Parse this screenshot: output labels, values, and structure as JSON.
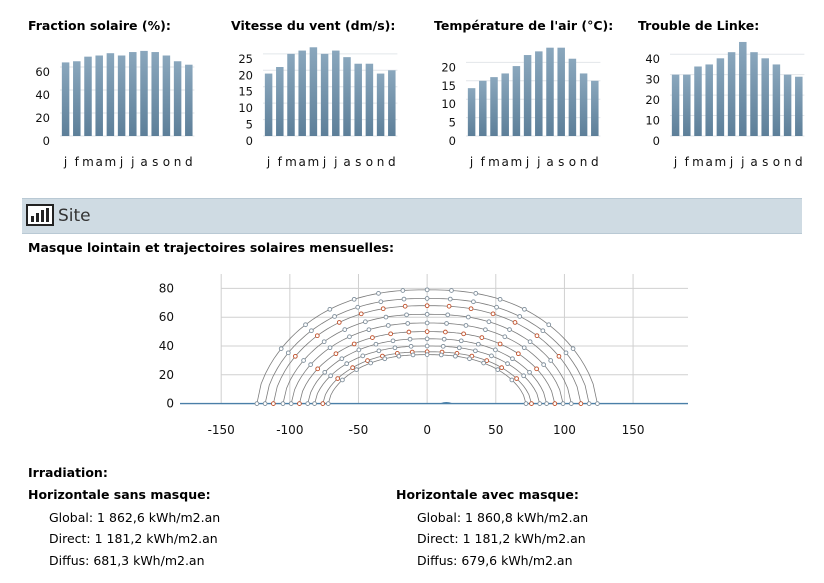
{
  "mini_charts": [
    {
      "title": "Fraction solaire (%):",
      "months": [
        "j",
        "f",
        "m",
        "a",
        "m",
        "j",
        "j",
        "a",
        "s",
        "o",
        "n",
        "d"
      ],
      "values": [
        64,
        65,
        69,
        70,
        72,
        70,
        73,
        74,
        73,
        70,
        65,
        62
      ],
      "ylim": [
        0,
        80
      ],
      "ticks": [
        0,
        20,
        40,
        60
      ]
    },
    {
      "title": "Vitesse du vent (dm/s):",
      "months": [
        "j",
        "f",
        "m",
        "a",
        "m",
        "j",
        "j",
        "a",
        "s",
        "o",
        "n",
        "d"
      ],
      "values": [
        19,
        21,
        25,
        26,
        27,
        25,
        26,
        24,
        22,
        22,
        19,
        20
      ],
      "ylim": [
        0,
        28
      ],
      "ticks": [
        0,
        5,
        10,
        15,
        20,
        25
      ]
    },
    {
      "title": "Température de l'air (°C):",
      "months": [
        "j",
        "f",
        "m",
        "a",
        "m",
        "j",
        "j",
        "a",
        "s",
        "o",
        "n",
        "d"
      ],
      "values": [
        13,
        15,
        16,
        17,
        19,
        22,
        23,
        24,
        24,
        21,
        17,
        15
      ],
      "ylim": [
        0,
        25
      ],
      "ticks": [
        0,
        5,
        10,
        15,
        20
      ]
    },
    {
      "title": "Trouble de Linke:",
      "months": [
        "j",
        "f",
        "m",
        "a",
        "m",
        "j",
        "j",
        "a",
        "s",
        "o",
        "n",
        "d"
      ],
      "values": [
        30,
        30,
        34,
        35,
        38,
        41,
        46,
        41,
        38,
        35,
        30,
        29
      ],
      "ylim": [
        0,
        45
      ],
      "ticks": [
        0,
        10,
        20,
        30,
        40
      ]
    }
  ],
  "section": {
    "title": "Site",
    "icon": "bar-chart-icon"
  },
  "subtitle": "Masque lointain et trajectoires solaires mensuelles:",
  "chart_data": {
    "type": "line",
    "xlim": [
      -180,
      190
    ],
    "ylim": [
      -10,
      90
    ],
    "x_ticks": [
      -150,
      -100,
      -50,
      0,
      50,
      100,
      150
    ],
    "y_ticks": [
      0,
      20,
      40,
      60,
      80
    ],
    "grid": true,
    "series": [
      {
        "noon_altitude": 79,
        "half_day_azimuth": 124,
        "marker": "#7f8f9c"
      },
      {
        "noon_altitude": 73,
        "half_day_azimuth": 118,
        "marker": "#7f8f9c"
      },
      {
        "noon_altitude": 68,
        "half_day_azimuth": 112,
        "marker": "#c0502a"
      },
      {
        "noon_altitude": 62,
        "half_day_azimuth": 105,
        "marker": "#7f8f9c"
      },
      {
        "noon_altitude": 56,
        "half_day_azimuth": 99,
        "marker": "#7f8f9c"
      },
      {
        "noon_altitude": 50,
        "half_day_azimuth": 93,
        "marker": "#c0502a"
      },
      {
        "noon_altitude": 45,
        "half_day_azimuth": 87,
        "marker": "#7f8f9c"
      },
      {
        "noon_altitude": 40,
        "half_day_azimuth": 82,
        "marker": "#7f8f9c"
      },
      {
        "noon_altitude": 36,
        "half_day_azimuth": 76,
        "marker": "#c0502a"
      },
      {
        "noon_altitude": 34,
        "half_day_azimuth": 72,
        "marker": "#7f8f9c"
      }
    ]
  },
  "irradiation": {
    "title": "Irradiation:",
    "left": {
      "heading": "Horizontale sans masque:",
      "lines": [
        "Global: 1 862,6 kWh/m2.an",
        "Direct: 1 181,2 kWh/m2.an",
        "Diffus: 681,3 kWh/m2.an"
      ]
    },
    "right": {
      "heading": "Horizontale avec masque:",
      "lines": [
        "Global: 1 860,8 kWh/m2.an",
        "Direct: 1 181,2 kWh/m2.an",
        "Diffus: 679,6 kWh/m2.an"
      ]
    }
  },
  "colors": {
    "bar_top": "#8aa7bd",
    "bar_bottom": "#5d7f99",
    "header_bg": "#cfdbe3",
    "path_line": "#7d7d7d",
    "horizon": "#4a7fa8"
  }
}
